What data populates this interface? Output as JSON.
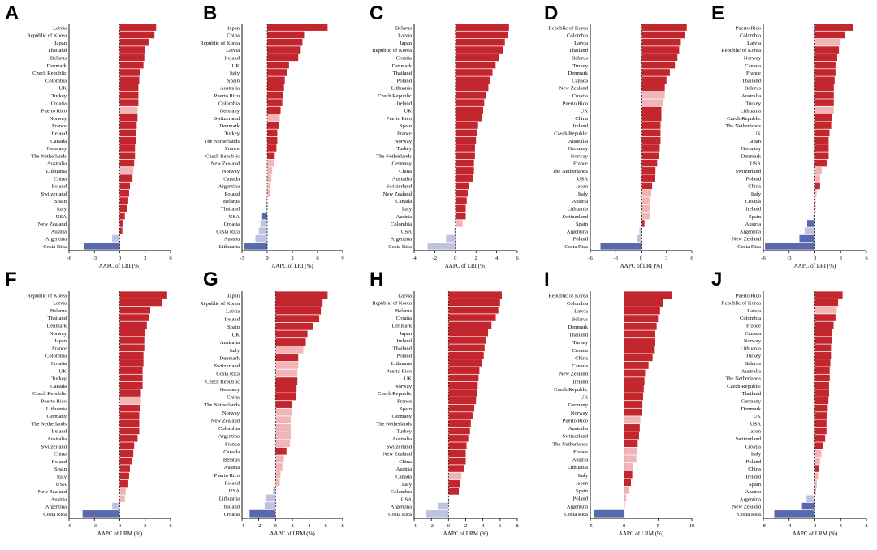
{
  "colors": {
    "pos_sig": "#c4262e",
    "pos_ns": "#f2b5b7",
    "neg_ns": "#bfc3df",
    "neg_sig": "#5a68ad"
  },
  "chart_data": [
    {
      "type": "bar",
      "orientation": "horizontal",
      "panel": "A",
      "xlabel": "AAPC of LRI (%)",
      "ticks": [
        -6,
        -3,
        0,
        3,
        6
      ],
      "xlim": [
        -6,
        6
      ],
      "categories": [
        "Latvia",
        "Republic of Korea",
        "Japan",
        "Thailand",
        "Belarus",
        "Denmark",
        "Czech Republic",
        "Colombia",
        "UK",
        "Turkey",
        "Croatia",
        "Puerto Rico",
        "Norway",
        "France",
        "Ireland",
        "Canada",
        "Germany",
        "The Netherlands",
        "Australia",
        "Lithuania",
        "China",
        "Poland",
        "Switzerland",
        "Spain",
        "Italy",
        "USA",
        "New Zealand",
        "Austria",
        "Argentina",
        "Costa Rica"
      ],
      "values": [
        4.3,
        4.1,
        3.4,
        3.0,
        2.9,
        2.8,
        2.4,
        2.3,
        2.2,
        2.2,
        2.2,
        2.1,
        2.1,
        2.0,
        1.9,
        1.9,
        1.8,
        1.8,
        1.7,
        1.6,
        1.5,
        1.2,
        1.1,
        1.0,
        0.9,
        0.6,
        0.4,
        0.3,
        -0.9,
        -4.2
      ],
      "significant": [
        true,
        true,
        true,
        true,
        true,
        true,
        true,
        true,
        true,
        true,
        true,
        false,
        true,
        true,
        true,
        true,
        true,
        true,
        true,
        false,
        true,
        true,
        true,
        true,
        true,
        true,
        true,
        true,
        false,
        true
      ]
    },
    {
      "type": "bar",
      "orientation": "horizontal",
      "panel": "B",
      "xlabel": "AAPC of LRI (%)",
      "ticks": [
        -3,
        0,
        3,
        6,
        9
      ],
      "xlim": [
        -3,
        9
      ],
      "categories": [
        "Japan",
        "China",
        "Republic of Korea",
        "Latvia",
        "Ireland",
        "UK",
        "Italy",
        "Spain",
        "Australia",
        "Puerto Rico",
        "Colombia",
        "Germany",
        "Switzerland",
        "Denmark",
        "Turkey",
        "The Netherlands",
        "France",
        "Czech Republic",
        "New Zealand",
        "Norway",
        "Canada",
        "Argentina",
        "Poland",
        "Belarus",
        "Thailand",
        "USA",
        "Croatia",
        "Costa Rica",
        "Austria",
        "Lithuania"
      ],
      "values": [
        7.2,
        4.4,
        4.2,
        4.0,
        3.7,
        2.6,
        2.4,
        2.1,
        2.0,
        1.9,
        1.8,
        1.6,
        1.5,
        1.4,
        1.2,
        1.2,
        1.1,
        0.9,
        0.8,
        0.6,
        0.5,
        0.4,
        0.3,
        -0.1,
        -0.2,
        -0.6,
        -0.8,
        -1.0,
        -1.4,
        -2.8
      ],
      "significant": [
        true,
        true,
        true,
        true,
        true,
        true,
        true,
        true,
        true,
        true,
        true,
        true,
        false,
        true,
        true,
        true,
        true,
        true,
        false,
        false,
        false,
        false,
        false,
        false,
        false,
        true,
        false,
        false,
        false,
        true
      ]
    },
    {
      "type": "bar",
      "orientation": "horizontal",
      "panel": "C",
      "xlabel": "AAPC of LRI (%)",
      "ticks": [
        -4,
        -2,
        0,
        2,
        4,
        6
      ],
      "xlim": [
        -4,
        6
      ],
      "categories": [
        "Belarus",
        "Latvia",
        "Japan",
        "Republic of Korea",
        "Croatia",
        "Denmark",
        "Thailand",
        "Poland",
        "Lithuania",
        "Czech Republic",
        "Ireland",
        "UK",
        "Puerto Rico",
        "Spain",
        "France",
        "Norway",
        "Turkey",
        "The Netherlands",
        "Germany",
        "China",
        "Australia",
        "Switzerland",
        "New Zealand",
        "Canada",
        "Italy",
        "Austria",
        "Colombia",
        "USA",
        "Argentina",
        "Costa Rica"
      ],
      "values": [
        5.2,
        5.1,
        4.8,
        4.6,
        4.2,
        3.9,
        3.6,
        3.4,
        3.2,
        3.0,
        2.8,
        2.7,
        2.6,
        2.2,
        2.1,
        2.0,
        1.9,
        1.9,
        1.8,
        1.8,
        1.7,
        1.3,
        1.2,
        1.1,
        1.0,
        1.0,
        0.7,
        -0.1,
        -0.9,
        -2.7
      ],
      "significant": [
        true,
        true,
        true,
        true,
        true,
        true,
        true,
        true,
        true,
        true,
        true,
        true,
        true,
        true,
        true,
        true,
        true,
        true,
        true,
        true,
        true,
        true,
        true,
        true,
        true,
        true,
        false,
        false,
        false,
        false
      ]
    },
    {
      "type": "bar",
      "orientation": "horizontal",
      "panel": "D",
      "xlabel": "AAPC of LRI (%)",
      "ticks": [
        -6,
        -3,
        0,
        3,
        6
      ],
      "xlim": [
        -6,
        6
      ],
      "categories": [
        "Republic of Korea",
        "Colombia",
        "Latvia",
        "Thailand",
        "Belarus",
        "Turkey",
        "Denmark",
        "Canada",
        "New Zealand",
        "Croatia",
        "Puerto Rico",
        "UK",
        "China",
        "Ireland",
        "Czech Republic",
        "Australia",
        "Germany",
        "Norway",
        "France",
        "The Netherlands",
        "USA",
        "Japan",
        "Italy",
        "Austria",
        "Lithuania",
        "Switzerland",
        "Spain",
        "Argentina",
        "Poland",
        "Costa Rica"
      ],
      "values": [
        5.4,
        5.2,
        4.7,
        4.5,
        4.3,
        4.0,
        3.4,
        3.0,
        2.8,
        2.8,
        2.6,
        2.4,
        2.4,
        2.3,
        2.3,
        2.3,
        2.2,
        2.1,
        1.9,
        1.7,
        1.6,
        1.3,
        1.2,
        1.1,
        1.0,
        1.0,
        0.4,
        -0.2,
        -0.5,
        -4.8
      ],
      "significant": [
        true,
        true,
        true,
        true,
        true,
        true,
        true,
        true,
        true,
        false,
        false,
        true,
        true,
        true,
        true,
        true,
        true,
        true,
        true,
        true,
        true,
        true,
        false,
        false,
        false,
        false,
        true,
        false,
        false,
        true
      ]
    },
    {
      "type": "bar",
      "orientation": "horizontal",
      "panel": "E",
      "xlabel": "AAPC of LRI (%)",
      "ticks": [
        -6,
        -3,
        0,
        3,
        6
      ],
      "xlim": [
        -6,
        6
      ],
      "categories": [
        "Puerto Rico",
        "Colombia",
        "Latvia",
        "Republic of Korea",
        "Norway",
        "Canada",
        "France",
        "Thailand",
        "Belarus",
        "Australia",
        "Turkey",
        "Lithuania",
        "Czech Republic",
        "The Netherlands",
        "UK",
        "Japan",
        "Germany",
        "Denmark",
        "USA",
        "Switzerland",
        "Poland",
        "China",
        "Italy",
        "Croatia",
        "Ireland",
        "Spain",
        "Austria",
        "Argentina",
        "New Zealand",
        "Costa Rica"
      ],
      "values": [
        4.4,
        3.5,
        3.0,
        2.8,
        2.6,
        2.4,
        2.4,
        2.3,
        2.2,
        2.2,
        2.2,
        2.2,
        2.0,
        1.9,
        1.7,
        1.6,
        1.6,
        1.6,
        1.4,
        0.8,
        0.6,
        0.6,
        0.2,
        0.1,
        0.1,
        -0.2,
        -0.9,
        -1.2,
        -1.8,
        -5.8
      ],
      "significant": [
        true,
        true,
        false,
        true,
        true,
        true,
        true,
        true,
        true,
        true,
        true,
        false,
        true,
        true,
        true,
        true,
        true,
        true,
        true,
        false,
        false,
        true,
        false,
        false,
        false,
        false,
        true,
        false,
        true,
        true
      ]
    },
    {
      "type": "bar",
      "orientation": "horizontal",
      "panel": "F",
      "xlabel": "AAPC of LRM (%)",
      "ticks": [
        -6,
        -3,
        0,
        3,
        6
      ],
      "xlim": [
        -6,
        6
      ],
      "categories": [
        "Republic of Korea",
        "Latvia",
        "Belarus",
        "Thailand",
        "Denmark",
        "Norway",
        "Japan",
        "France",
        "Colombia",
        "Croatia",
        "UK",
        "Turkey",
        "Canada",
        "Czech Republic",
        "Puerto Rico",
        "Lithuania",
        "Germany",
        "The Netherlands",
        "Ireland",
        "Australia",
        "Switzerland",
        "China",
        "Poland",
        "Spain",
        "Italy",
        "USA",
        "New Zealand",
        "Austria",
        "Argentina",
        "Costa Rica"
      ],
      "values": [
        5.6,
        5.0,
        3.6,
        3.4,
        3.2,
        3.0,
        2.9,
        2.9,
        2.8,
        2.8,
        2.7,
        2.7,
        2.7,
        2.5,
        2.5,
        2.4,
        2.3,
        2.3,
        2.3,
        2.1,
        1.7,
        1.6,
        1.4,
        1.2,
        1.1,
        1.0,
        0.7,
        0.6,
        -0.9,
        -4.4
      ],
      "significant": [
        true,
        true,
        true,
        true,
        true,
        true,
        true,
        true,
        true,
        true,
        true,
        true,
        true,
        true,
        false,
        true,
        true,
        true,
        true,
        true,
        true,
        true,
        true,
        true,
        true,
        true,
        false,
        false,
        false,
        true
      ]
    },
    {
      "type": "bar",
      "orientation": "horizontal",
      "panel": "G",
      "xlabel": "AAPC of LRM (%)",
      "ticks": [
        -4,
        -2,
        0,
        2,
        4,
        6,
        8
      ],
      "xlim": [
        -4,
        8
      ],
      "categories": [
        "Japan",
        "Republic of Korea",
        "Latvia",
        "Ireland",
        "Spain",
        "UK",
        "Australia",
        "Italy",
        "Denmark",
        "Switzerland",
        "Costa Rica",
        "Czech Republic",
        "Germany",
        "China",
        "The Netherlands",
        "Norway",
        "New Zealand",
        "Colombia",
        "Argentina",
        "France",
        "Canada",
        "Belarus",
        "Austria",
        "Puerto Rico",
        "Poland",
        "USA",
        "Lithuania",
        "Thailand",
        "Croatia"
      ],
      "values": [
        6.2,
        5.6,
        5.4,
        5.2,
        4.5,
        3.8,
        3.6,
        3.3,
        2.7,
        2.7,
        2.6,
        2.6,
        2.5,
        2.4,
        2.0,
        1.9,
        1.8,
        1.8,
        1.8,
        1.7,
        1.3,
        1.0,
        0.8,
        0.6,
        0.5,
        -0.3,
        -1.2,
        -1.3,
        -3.1
      ],
      "significant": [
        true,
        true,
        true,
        true,
        true,
        true,
        true,
        false,
        true,
        false,
        false,
        true,
        true,
        true,
        true,
        false,
        false,
        false,
        false,
        false,
        true,
        false,
        false,
        false,
        false,
        false,
        false,
        false,
        true
      ]
    },
    {
      "type": "bar",
      "orientation": "horizontal",
      "panel": "H",
      "xlabel": "AAPC of LRM (%)",
      "ticks": [
        -4,
        -2,
        0,
        2,
        4,
        6,
        8
      ],
      "xlim": [
        -4,
        8
      ],
      "categories": [
        "Latvia",
        "Republic of Korea",
        "Belarus",
        "Croatia",
        "Denmark",
        "Japan",
        "Ireland",
        "Thailand",
        "Poland",
        "Lithuania",
        "Puerto Rico",
        "UK",
        "Norway",
        "Czech Republic",
        "France",
        "Spain",
        "Germany",
        "The Netherlands",
        "Turkey",
        "Australia",
        "Switzerland",
        "New Zealand",
        "China",
        "Austria",
        "Canada",
        "Italy",
        "Colombia",
        "USA",
        "Argentina",
        "Costa Rica"
      ],
      "values": [
        6.2,
        6.0,
        5.8,
        5.5,
        5.0,
        4.6,
        4.4,
        4.2,
        4.1,
        3.9,
        3.6,
        3.5,
        3.4,
        3.3,
        3.2,
        3.0,
        2.8,
        2.6,
        2.5,
        2.3,
        2.1,
        2.0,
        2.0,
        1.8,
        1.5,
        1.3,
        1.2,
        0.1,
        -1.2,
        -2.6
      ],
      "significant": [
        true,
        true,
        true,
        true,
        true,
        true,
        true,
        true,
        true,
        true,
        true,
        true,
        true,
        true,
        true,
        true,
        true,
        true,
        true,
        true,
        true,
        true,
        true,
        true,
        false,
        true,
        true,
        false,
        false,
        false
      ]
    },
    {
      "type": "bar",
      "orientation": "horizontal",
      "panel": "I",
      "xlabel": "AAPC of LRM (%)",
      "ticks": [
        -5,
        0,
        5,
        10
      ],
      "xlim": [
        -5,
        10
      ],
      "categories": [
        "Republic of Korea",
        "Colombia",
        "Latvia",
        "Belarus",
        "Denmark",
        "Thailand",
        "Turkey",
        "Croatia",
        "China",
        "Canada",
        "New Zealand",
        "Ireland",
        "Czech Republic",
        "UK",
        "Germany",
        "Norway",
        "Puerto Rico",
        "Australia",
        "Switzerland",
        "The Netherlands",
        "France",
        "Austria",
        "Lithuania",
        "Italy",
        "Japan",
        "Spain",
        "Poland",
        "Argentina",
        "Costa Rica"
      ],
      "values": [
        7.0,
        5.7,
        5.3,
        5.0,
        4.8,
        4.6,
        4.5,
        4.4,
        4.2,
        3.6,
        3.1,
        3.0,
        2.9,
        2.8,
        2.7,
        2.6,
        2.4,
        2.3,
        2.2,
        2.0,
        1.9,
        1.8,
        1.3,
        1.2,
        1.0,
        0.7,
        0.3,
        0.1,
        -4.4
      ],
      "significant": [
        true,
        true,
        true,
        true,
        true,
        true,
        true,
        true,
        true,
        true,
        true,
        true,
        true,
        true,
        true,
        true,
        false,
        true,
        true,
        true,
        false,
        false,
        false,
        true,
        true,
        false,
        false,
        false,
        true
      ]
    },
    {
      "type": "bar",
      "orientation": "horizontal",
      "panel": "J",
      "xlabel": "AAPC of LRM (%)",
      "ticks": [
        -8,
        -4,
        0,
        4,
        8
      ],
      "xlim": [
        -8,
        8
      ],
      "categories": [
        "Puerto Rico",
        "Republic of Korea",
        "Latvia",
        "Colombia",
        "France",
        "Canada",
        "Norway",
        "Lithuania",
        "Turkey",
        "Belarus",
        "Australia",
        "The Netherlands",
        "Czech Republic",
        "Thailand",
        "Germany",
        "Denmark",
        "UK",
        "USA",
        "Japan",
        "Switzerland",
        "Croatia",
        "Italy",
        "Poland",
        "China",
        "Ireland",
        "Spain",
        "Austria",
        "Argentina",
        "New Zealand",
        "Costa Rica"
      ],
      "values": [
        4.3,
        3.6,
        3.4,
        3.2,
        2.9,
        2.7,
        2.6,
        2.5,
        2.5,
        2.4,
        2.3,
        2.3,
        2.2,
        2.2,
        2.1,
        2.0,
        1.9,
        1.8,
        1.8,
        1.6,
        1.3,
        1.0,
        0.8,
        0.7,
        0.5,
        0.3,
        0.2,
        -1.3,
        -2.0,
        -6.3
      ],
      "significant": [
        true,
        true,
        false,
        true,
        true,
        true,
        true,
        true,
        true,
        true,
        true,
        true,
        true,
        true,
        true,
        true,
        true,
        true,
        true,
        true,
        true,
        false,
        false,
        true,
        false,
        false,
        false,
        false,
        true,
        true
      ]
    }
  ]
}
